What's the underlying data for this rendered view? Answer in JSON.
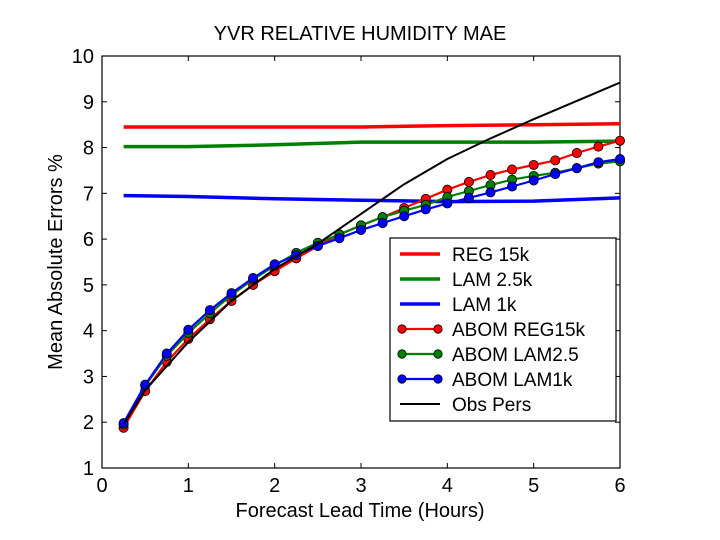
{
  "chart_data": {
    "type": "line",
    "title": "YVR RELATIVE HUMIDITY MAE",
    "xlabel": "Forecast Lead Time (Hours)",
    "ylabel": "Mean Absolute Errors %",
    "xlim": [
      0,
      6
    ],
    "ylim": [
      1,
      10
    ],
    "xticks": [
      0,
      1,
      2,
      3,
      4,
      5,
      6
    ],
    "yticks": [
      1,
      2,
      3,
      4,
      5,
      6,
      7,
      8,
      9,
      10
    ],
    "grid": false,
    "legend_position": "bottom-right",
    "series": [
      {
        "name": "REG 15k",
        "color": "#ff0000",
        "marker": false,
        "x": [
          0.25,
          1,
          2,
          3,
          4,
          5,
          6
        ],
        "y": [
          8.45,
          8.45,
          8.45,
          8.45,
          8.48,
          8.5,
          8.52
        ]
      },
      {
        "name": "LAM 2.5k",
        "color": "#008000",
        "marker": false,
        "x": [
          0.25,
          1,
          2,
          3,
          4,
          5,
          6
        ],
        "y": [
          8.02,
          8.02,
          8.06,
          8.12,
          8.12,
          8.12,
          8.14
        ]
      },
      {
        "name": "LAM 1k",
        "color": "#0000ff",
        "marker": false,
        "x": [
          0.25,
          1,
          2,
          3,
          4,
          5,
          6
        ],
        "y": [
          6.95,
          6.93,
          6.88,
          6.85,
          6.82,
          6.83,
          6.9
        ]
      },
      {
        "name": "ABOM REG15k",
        "color": "#ff0000",
        "marker": true,
        "x": [
          0.25,
          0.5,
          0.75,
          1,
          1.25,
          1.5,
          1.75,
          2,
          2.25,
          2.5,
          2.75,
          3,
          3.25,
          3.5,
          3.75,
          4,
          4.25,
          4.5,
          4.75,
          5,
          5.25,
          5.5,
          5.75,
          6
        ],
        "y": [
          1.88,
          2.68,
          3.32,
          3.82,
          4.25,
          4.65,
          5.0,
          5.3,
          5.58,
          5.85,
          6.1,
          6.3,
          6.48,
          6.68,
          6.88,
          7.08,
          7.25,
          7.4,
          7.52,
          7.62,
          7.72,
          7.88,
          8.02,
          8.15
        ]
      },
      {
        "name": "ABOM LAM2.5",
        "color": "#008000",
        "marker": true,
        "x": [
          0.25,
          0.5,
          0.75,
          1,
          1.25,
          1.5,
          1.75,
          2,
          2.25,
          2.5,
          2.75,
          3,
          3.25,
          3.5,
          3.75,
          4,
          4.25,
          4.5,
          4.75,
          5,
          5.25,
          5.5,
          5.75,
          6
        ],
        "y": [
          1.95,
          2.8,
          3.45,
          3.95,
          4.38,
          4.78,
          5.12,
          5.42,
          5.7,
          5.92,
          6.1,
          6.3,
          6.48,
          6.62,
          6.75,
          6.92,
          7.05,
          7.18,
          7.3,
          7.38,
          7.45,
          7.55,
          7.65,
          7.7
        ]
      },
      {
        "name": "ABOM LAM1k",
        "color": "#0000ff",
        "marker": true,
        "x": [
          0.25,
          0.5,
          0.75,
          1,
          1.25,
          1.5,
          1.75,
          2,
          2.25,
          2.5,
          2.75,
          3,
          3.25,
          3.5,
          3.75,
          4,
          4.25,
          4.5,
          4.75,
          5,
          5.25,
          5.5,
          5.75,
          6
        ],
        "y": [
          1.98,
          2.82,
          3.5,
          4.02,
          4.45,
          4.82,
          5.15,
          5.45,
          5.65,
          5.85,
          6.02,
          6.2,
          6.35,
          6.5,
          6.65,
          6.78,
          6.9,
          7.02,
          7.15,
          7.28,
          7.42,
          7.55,
          7.68,
          7.75
        ]
      },
      {
        "name": "Obs Pers",
        "color": "#000000",
        "marker": false,
        "x": [
          0.25,
          0.5,
          1,
          1.5,
          2,
          2.5,
          3,
          3.5,
          4,
          4.5,
          5,
          5.5,
          6
        ],
        "y": [
          1.95,
          2.7,
          3.75,
          4.65,
          5.35,
          5.9,
          6.55,
          7.2,
          7.75,
          8.2,
          8.62,
          9.02,
          9.42
        ]
      }
    ]
  }
}
